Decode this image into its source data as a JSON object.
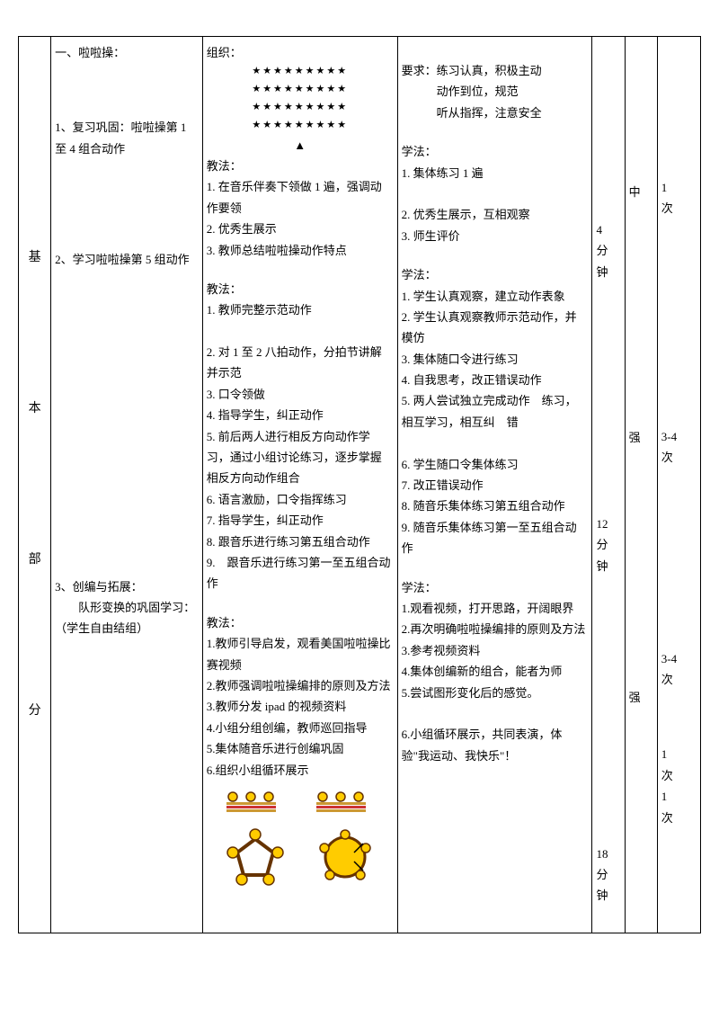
{
  "rowLabel": "基\n\n\n本\n\n\n部\n\n\n分",
  "col2": {
    "title": "一、啦啦操：",
    "item1": "1、复习巩固：啦啦操第 1 至 4 组合动作",
    "item2": "2、学习啦啦操第 5 组动作",
    "item3": "3、创编与拓展：",
    "item3a": "　　队形变换的巩固学习：（学生自由结组）"
  },
  "col3": {
    "org": "组织：",
    "stars": "★★★★★★★★★",
    "tri": "▲",
    "teach1title": "教法：",
    "teach1": [
      " 1. 在音乐伴奏下领做 1 遍，强调动作要领",
      "2. 优秀生展示",
      "3. 教师总结啦啦操动作特点"
    ],
    "teach2title": "教法：",
    "teach2": [
      "1. 教师完整示范动作",
      "",
      "2. 对 1 至 2 八拍动作，分拍节讲解并示范",
      "3. 口令领做",
      "4. 指导学生，纠正动作",
      "5. 前后两人进行相反方向动作学习，通过小组讨论练习，逐步掌握相反方向动作组合",
      "6. 语言激励，口令指挥练习",
      "7. 指导学生，纠正动作",
      "8. 跟音乐进行练习第五组合动作",
      "9.　跟音乐进行练习第一至五组合动作"
    ],
    "teach3title": "教法：",
    "teach3": [
      "1.教师引导启发，观看美国啦啦操比赛视频",
      "2.教师强调啦啦操编排的原则及方法",
      "3.教师分发 ipad 的视频资料",
      "4.小组分组创编，教师巡回指导",
      "5.集体随音乐进行创编巩固",
      "6.组织小组循环展示"
    ]
  },
  "col4": {
    "req": "要求：练习认真，积极主动",
    "req2": "　　　动作到位，规范",
    "req3": "　　　听从指挥，注意安全",
    "learn1title": "学法：",
    "learn1": [
      "1. 集体练习 1 遍",
      "",
      "2. 优秀生展示，互相观察",
      "3. 师生评价"
    ],
    "learn2title": "学法：",
    "learn2": [
      "1. 学生认真观察，建立动作表象",
      "2. 学生认真观察教师示范动作，并模仿",
      "3. 集体随口令进行练习",
      "4. 自我思考，改正错误动作",
      "5. 两人尝试独立完成动作　练习，相互学习，相互纠　错",
      "",
      "6. 学生随口令集体练习",
      "7. 改正错误动作",
      "8. 随音乐集体练习第五组合动作",
      "9. 随音乐集体练习第一至五组合动作"
    ],
    "learn3title": "学法：",
    "learn3": [
      "1.观看视频，打开思路，开阔眼界",
      "2.再次明确啦啦操编排的原则及方法",
      "3.参考视频资料",
      "4.集体创编新的组合，能者为师",
      "5.尝试图形变化后的感觉。",
      "",
      "6.小组循环展示，共同表演，体验\"我运动、我快乐\"！"
    ]
  },
  "time1": "4\n分\n钟",
  "time2": "12\n分\n钟",
  "time3": "18\n分\n钟",
  "int1": "中",
  "int2": "强",
  "int3": "强",
  "count1": "1\n次",
  "count2": "3-4\n次",
  "count3": "3-4\n次",
  "count4": "1\n次\n1\n次",
  "colors": {
    "star": "#000000",
    "circleFill": "#ffcc00",
    "circleStroke": "#663300",
    "bandOuter": "#cc9933",
    "bandInner": "#cc3333",
    "pentStroke": "#663300",
    "pentFill": "#ffffff"
  }
}
